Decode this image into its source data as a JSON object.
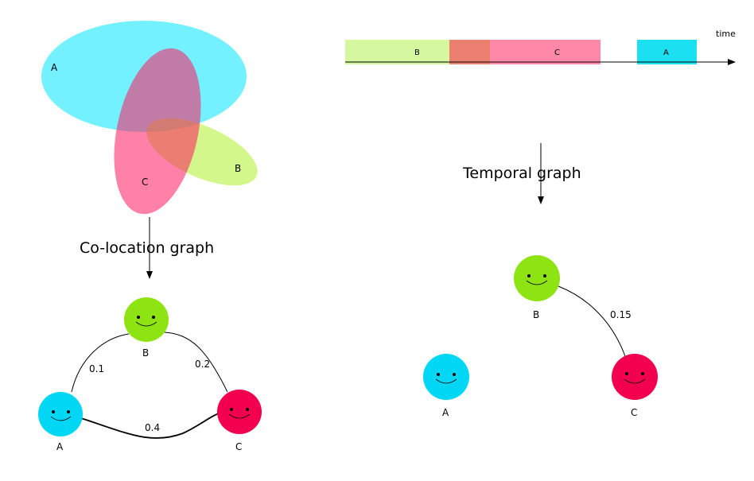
{
  "venn": {
    "labels": {
      "a": "A",
      "b": "B",
      "c": "C"
    },
    "colors": {
      "a": "#00e5ff",
      "b": "#b5f23c",
      "c": "#ff1a5e"
    }
  },
  "colocation": {
    "caption": "Co-location graph",
    "nodes": [
      {
        "id": "A",
        "label": "A",
        "color": "#00d7f5"
      },
      {
        "id": "B",
        "label": "B",
        "color": "#8ee312"
      },
      {
        "id": "C",
        "label": "C",
        "color": "#f2004f"
      }
    ],
    "edges": [
      {
        "from": "A",
        "to": "B",
        "weight": "0.1"
      },
      {
        "from": "B",
        "to": "C",
        "weight": "0.2"
      },
      {
        "from": "A",
        "to": "C",
        "weight": "0.4"
      }
    ]
  },
  "timeline": {
    "axis_label": "time",
    "segments": [
      {
        "label": "B",
        "color": "#d4f7a0"
      },
      {
        "label": "",
        "color": "#ec8070"
      },
      {
        "label": "C",
        "color": "#ff88a8"
      },
      {
        "label": "A",
        "color": "#1ae0f2"
      }
    ]
  },
  "temporal": {
    "caption": "Temporal graph",
    "nodes": [
      {
        "id": "A",
        "label": "A",
        "color": "#00d7f5"
      },
      {
        "id": "B",
        "label": "B",
        "color": "#8ee312"
      },
      {
        "id": "C",
        "label": "C",
        "color": "#f2004f"
      }
    ],
    "edges": [
      {
        "from": "B",
        "to": "C",
        "weight": "0.15"
      }
    ]
  }
}
